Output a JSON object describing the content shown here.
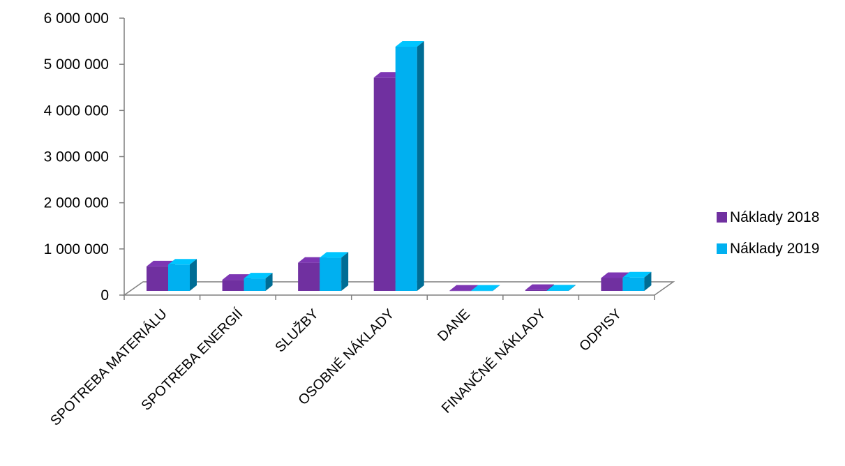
{
  "chart_data": {
    "type": "bar",
    "title": "",
    "xlabel": "",
    "ylabel": "",
    "categories": [
      "SPOTREBA MATERIÁLU",
      "SPOTREBA ENERGIÍ",
      "SLUŽBY",
      "OSOBNÉ NÁKLADY",
      "DANE",
      "FINANČNÉ NÁKLADY",
      "ODPISY"
    ],
    "series": [
      {
        "name": "Náklady 2018",
        "values": [
          530000,
          240000,
          610000,
          4620000,
          5000,
          20000,
          280000
        ],
        "color": "#7030a0"
      },
      {
        "name": "Náklady 2019",
        "values": [
          570000,
          270000,
          720000,
          5290000,
          5000,
          10000,
          290000
        ],
        "color": "#00b0f0"
      }
    ],
    "ylim": [
      0,
      6000000
    ],
    "yticks": [
      0,
      1000000,
      2000000,
      3000000,
      4000000,
      5000000,
      6000000
    ],
    "ytick_labels": [
      "0",
      "1 000 000",
      "2 000 000",
      "3 000 000",
      "4 000 000",
      "5 000 000",
      "6 000 000"
    ],
    "legend_position": "right",
    "style": "3d-clustered-column",
    "grid": false
  }
}
